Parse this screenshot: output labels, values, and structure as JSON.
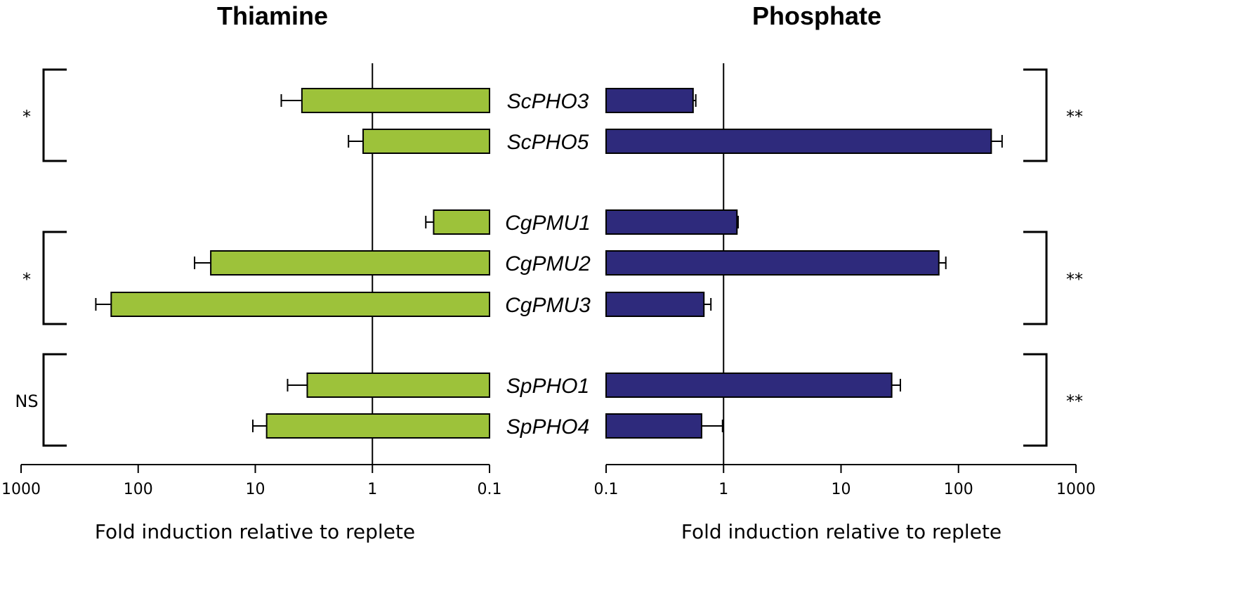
{
  "chart_data": [
    {
      "type": "bar",
      "title": "Thiamine",
      "xlabel": "Fold induction relative to replete",
      "xscale": "log",
      "xlim": [
        0.1,
        1000
      ],
      "x_reversed": true,
      "reference_line": 1,
      "color": "#9dc23a",
      "ticks": [
        "1000",
        "100",
        "10",
        "1",
        "0.1"
      ],
      "categories": [
        "ScPHO3",
        "ScPHO5",
        "CgPMU1",
        "CgPMU2",
        "CgPMU3",
        "SpPHO1",
        "SpPHO4"
      ],
      "values": [
        4.0,
        1.2,
        0.3,
        24,
        170,
        3.6,
        8
      ],
      "error_upper": [
        6.0,
        1.6,
        0.35,
        33,
        230,
        5.3,
        10.5
      ],
      "significance": [
        {
          "label": "*",
          "genes": [
            "ScPHO3",
            "ScPHO5"
          ]
        },
        {
          "label": "*",
          "genes": [
            "CgPMU2",
            "CgPMU3"
          ]
        },
        {
          "label": "NS",
          "genes": [
            "SpPHO1",
            "SpPHO4"
          ]
        }
      ]
    },
    {
      "type": "bar",
      "title": "Phosphate",
      "xlabel": "Fold induction relative to replete",
      "xscale": "log",
      "xlim": [
        0.1,
        1000
      ],
      "x_reversed": false,
      "reference_line": 1,
      "color": "#2e2a7c",
      "ticks": [
        "0.1",
        "1",
        "10",
        "100",
        "1000"
      ],
      "categories": [
        "ScPHO3",
        "ScPHO5",
        "CgPMU1",
        "CgPMU2",
        "CgPMU3",
        "SpPHO1",
        "SpPHO4"
      ],
      "values": [
        0.55,
        190,
        1.3,
        68,
        0.68,
        27,
        0.65
      ],
      "error_upper": [
        0.58,
        235,
        1.33,
        78,
        0.78,
        32,
        0.98
      ],
      "significance": [
        {
          "label": "**",
          "genes": [
            "ScPHO3",
            "ScPHO5"
          ]
        },
        {
          "label": "**",
          "genes": [
            "CgPMU2",
            "CgPMU3"
          ]
        },
        {
          "label": "**",
          "genes": [
            "SpPHO1",
            "SpPHO4"
          ]
        }
      ]
    }
  ]
}
